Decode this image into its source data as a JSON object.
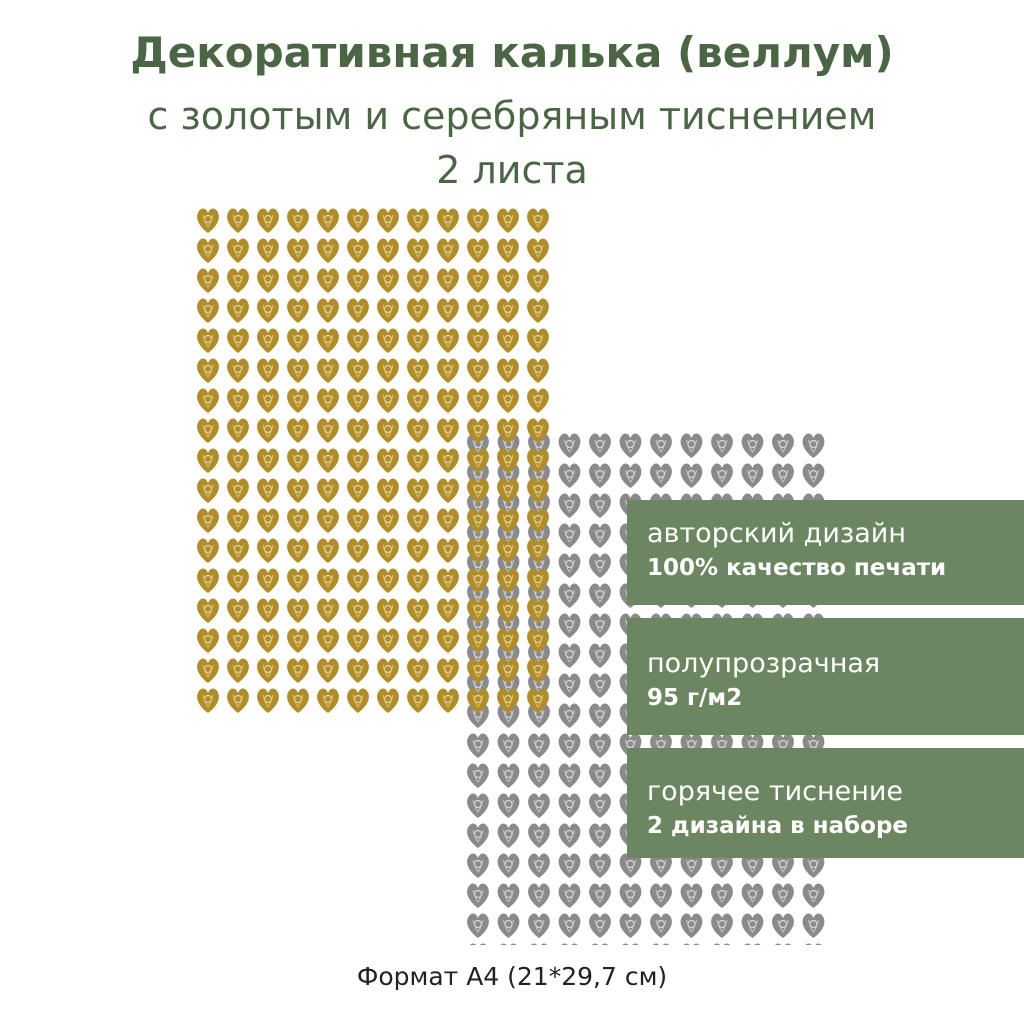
{
  "title": {
    "line1": "Декоративная калька (веллум)",
    "line2": "с золотым и серебряным тиснением",
    "line3": "2 листа"
  },
  "features": [
    {
      "label": "авторский дизайн",
      "detail": "100% качество печати"
    },
    {
      "label": "полупрозрачная",
      "detail": "95 г/м2"
    },
    {
      "label": "горячее тиснение",
      "detail": "2 дизайна в наборе"
    }
  ],
  "footer": "Формат А4 (21*29,7 см)"
}
